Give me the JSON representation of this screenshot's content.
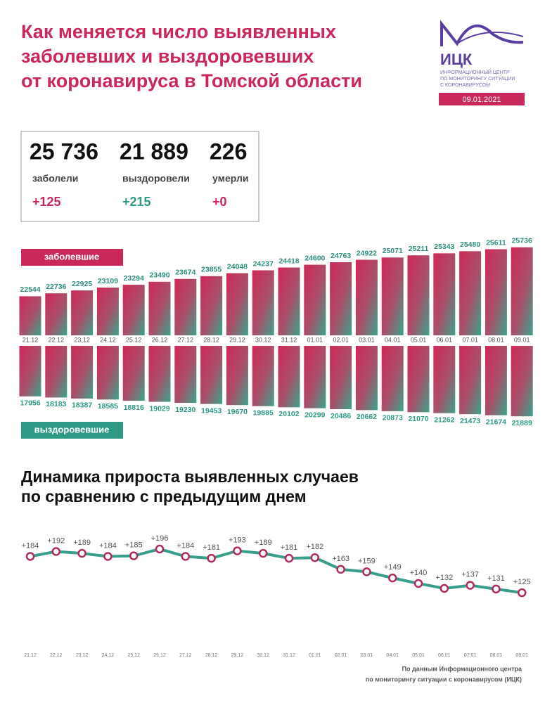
{
  "header": {
    "title_lines": [
      "Как меняется число выявленных",
      "заболевших и выздоровевших",
      "от коронавируса в Томской области"
    ],
    "logo": "ИЦК",
    "logo_subtitle": [
      "ИНФОРМАЦИОННЫЙ ЦЕНТР",
      "ПО МОНИТОРИНГУ СИТУАЦИИ",
      "С КОРОНАВИРУСОМ"
    ],
    "date": "09.01.2021"
  },
  "summary": [
    {
      "value": "25 736",
      "label": "заболели",
      "delta": "+125",
      "color": "#c8285a"
    },
    {
      "value": "21 889",
      "label": "выздоровели",
      "delta": "+215",
      "color": "#2e9a86"
    },
    {
      "value": "226",
      "label": "умерли",
      "delta": "+0",
      "color": "#c8285a"
    }
  ],
  "chart_data": [
    {
      "type": "bar",
      "name": "заболевшие",
      "name_color": "#c8285a",
      "orientation": "up",
      "categories": [
        "21.12",
        "22.12",
        "23.12",
        "24.12",
        "25.12",
        "26.12",
        "27.12",
        "28.12",
        "29.12",
        "30.12",
        "31.12",
        "01.01",
        "02.01",
        "03.01",
        "04.01",
        "05.01",
        "06.01",
        "07.01",
        "08.01",
        "09.01"
      ],
      "values": [
        22544,
        22736,
        22925,
        23109,
        23294,
        23490,
        23674,
        23855,
        24048,
        24237,
        24418,
        24600,
        24763,
        24922,
        25071,
        25211,
        25343,
        25480,
        25611,
        25736
      ],
      "ylim": [
        20000,
        26000
      ],
      "label_color": "#2e8f7e"
    },
    {
      "type": "bar",
      "name": "выздоровевшие",
      "name_color": "#2e9a86",
      "orientation": "down",
      "values": [
        17956,
        18183,
        18387,
        18585,
        18816,
        19029,
        19230,
        19453,
        19670,
        19885,
        20102,
        20299,
        20486,
        20662,
        20873,
        21070,
        21262,
        21473,
        21674,
        21889
      ],
      "ylim": [
        8000,
        22000
      ],
      "label_color": "#2e9a86"
    },
    {
      "type": "line",
      "title_lines": [
        "Динамика прироста выявленных случаев",
        "по сравнению с предыдущим днем"
      ],
      "categories": [
        "21.12",
        "22.12",
        "23.12",
        "24.12",
        "25.12",
        "26.12",
        "27.12",
        "28.12",
        "29.12",
        "30.12",
        "31.12",
        "01.01",
        "02.01",
        "03.01",
        "04.01",
        "05.01",
        "06.01",
        "07.01",
        "08.01",
        "09.01"
      ],
      "values": [
        184,
        192,
        189,
        184,
        185,
        196,
        184,
        181,
        193,
        189,
        181,
        182,
        163,
        159,
        149,
        140,
        132,
        137,
        131,
        125
      ],
      "value_labels": [
        "+184",
        "+192",
        "+189",
        "+184",
        "+185",
        "+196",
        "+184",
        "+181",
        "+193",
        "+189",
        "+181",
        "+182",
        "+163",
        "+159",
        "+149",
        "+140",
        "+132",
        "+137",
        "+131",
        "+125"
      ],
      "ylim": [
        60,
        220
      ],
      "color": "#3a9e8c",
      "marker_color": "#b02a5e"
    }
  ],
  "footer": [
    "По данным Информационного центра",
    "по мониторингу ситуации с коронавирусом (ИЦК)"
  ]
}
